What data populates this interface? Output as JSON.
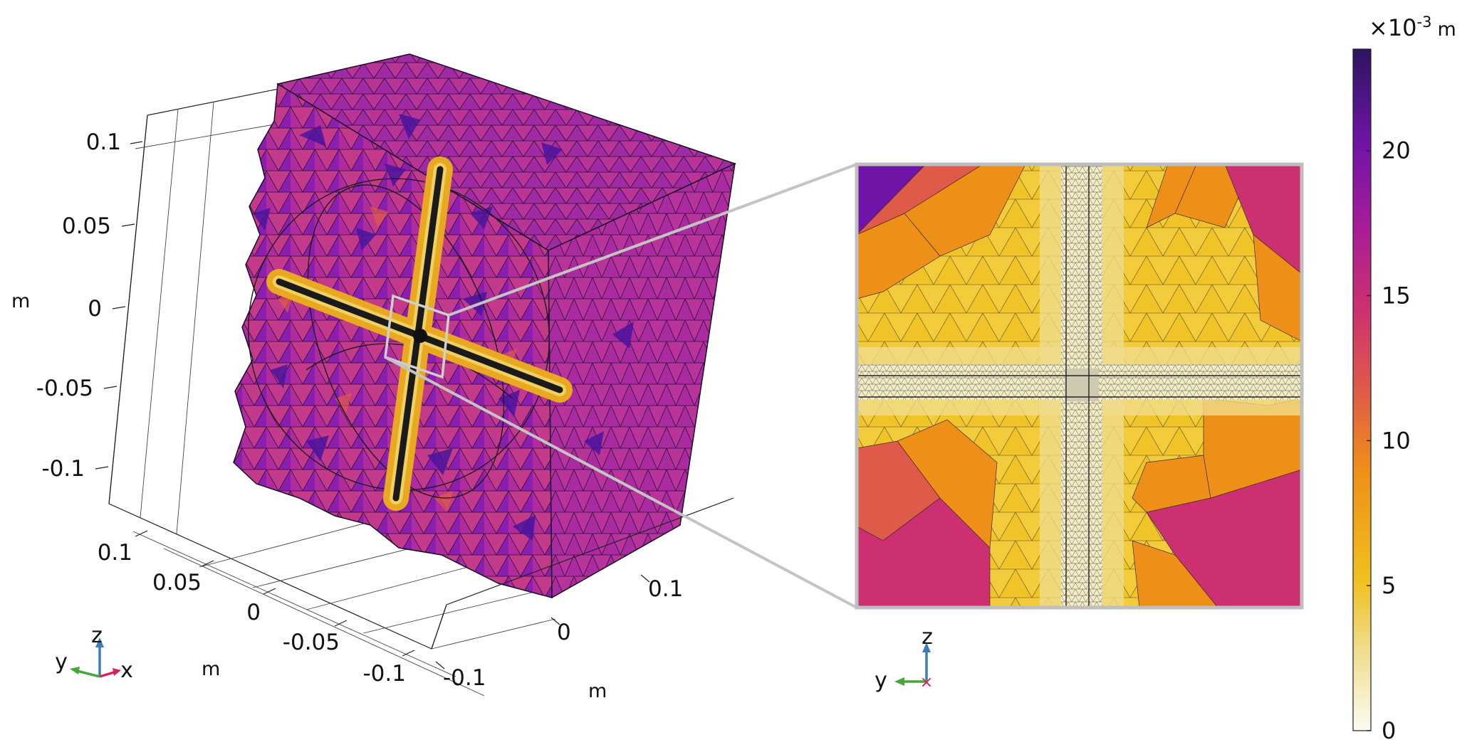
{
  "view3d": {
    "z_ticks": [
      "0.1",
      "0.05",
      "0",
      "-0.05",
      "-0.1"
    ],
    "z_unit": "m",
    "y_ticks": [
      "0.1",
      "0.05",
      "0",
      "-0.05",
      "-0.1"
    ],
    "y_unit": "m",
    "x_ticks": [
      "0.1",
      "0",
      "-0.1"
    ],
    "x_unit": "m",
    "triad": {
      "z": "z",
      "y": "y",
      "x": "x"
    }
  },
  "zoom_view": {
    "triad": {
      "z": "z",
      "y": "y",
      "x": "x"
    }
  },
  "colorbar": {
    "scale_label": "×10",
    "scale_exponent": "-3",
    "unit": "m",
    "ticks": [
      "20",
      "15",
      "10",
      "5",
      "0"
    ],
    "range": [
      0,
      23.5
    ],
    "tick_values": [
      20,
      15,
      10,
      5,
      0
    ],
    "colormap": [
      "#fcfcf2",
      "#f0dc8c",
      "#f0c020",
      "#ee9018",
      "#e05a4a",
      "#cc3070",
      "#a81c98",
      "#7014a8",
      "#2c1460"
    ]
  },
  "colors": {
    "mesh_purple_light": "#b02c9c",
    "mesh_purple_dark": "#4a149c",
    "mesh_magenta": "#c83080",
    "crack_core": "#1a1a1a",
    "crack_halo": "#e8b020",
    "zoom_border": "#bfbfbf",
    "triad_x": "#d4245a",
    "triad_y": "#44a838",
    "triad_z": "#3e7cb8"
  }
}
